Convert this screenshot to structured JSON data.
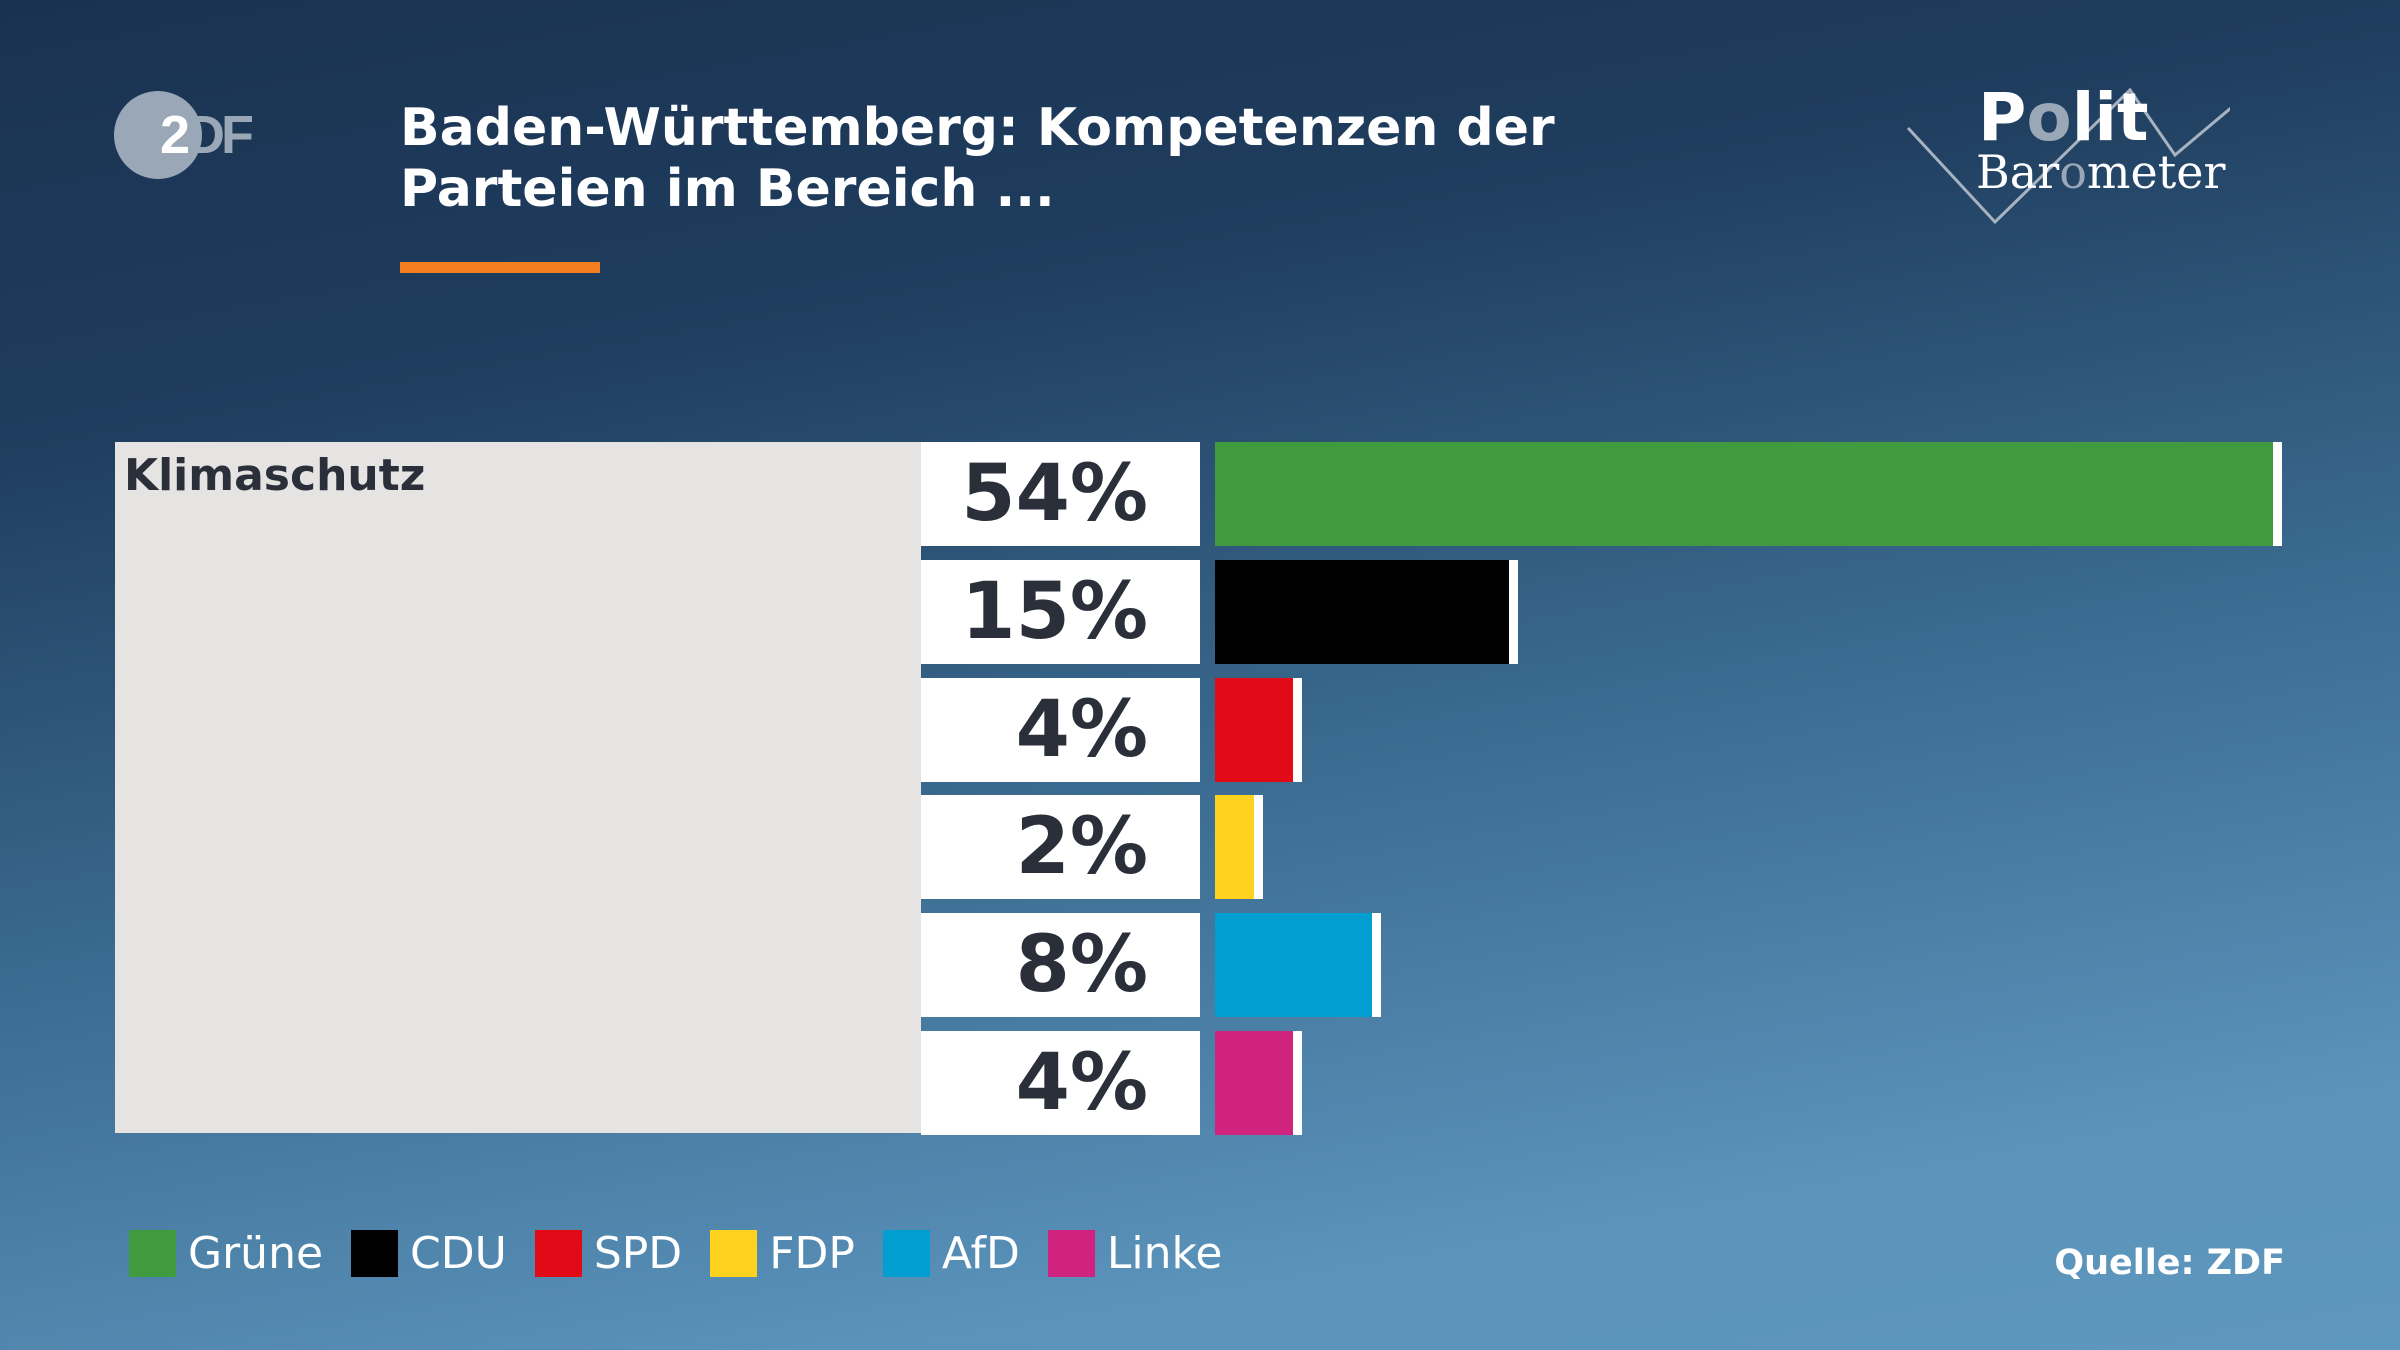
{
  "header": {
    "logo": "ZDF",
    "title": "Baden-Württemberg: Kompetenzen der Parteien im Bereich ...",
    "brand": "Polit Barometer"
  },
  "chart_data": {
    "type": "bar",
    "orientation": "horizontal",
    "title": "Baden-Württemberg: Kompetenzen der Parteien im Bereich ...",
    "category": "Klimaschutz",
    "categories": [
      "Grüne",
      "CDU",
      "SPD",
      "FDP",
      "AfD",
      "Linke"
    ],
    "values": [
      54,
      15,
      4,
      2,
      8,
      4
    ],
    "labels": [
      "54%",
      "15%",
      "4%",
      "2%",
      "8%",
      "4%"
    ],
    "colors": [
      "#3f9b3d",
      "#000000",
      "#e20a17",
      "#ffd21f",
      "#009ed1",
      "#d0227f"
    ],
    "unit": "%",
    "legend_position": "bottom-left",
    "grid": false
  },
  "legend": [
    "Grüne",
    "CDU",
    "SPD",
    "FDP",
    "AfD",
    "Linke"
  ],
  "footer": {
    "source": "Quelle: ZDF"
  }
}
